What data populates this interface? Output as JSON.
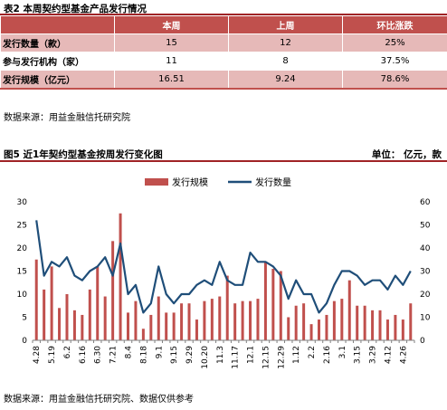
{
  "table": {
    "caption": "表2 本周契约型基金产品发行情况",
    "headers": [
      "",
      "本周",
      "上周",
      "环比涨跌"
    ],
    "rows": [
      {
        "label": "发行数量（款）",
        "this_week": "15",
        "last_week": "12",
        "change": "25%"
      },
      {
        "label": "参与发行机构（家）",
        "this_week": "11",
        "last_week": "8",
        "change": "37.5%"
      },
      {
        "label": "发行规模（亿元）",
        "this_week": "16.51",
        "last_week": "9.24",
        "change": "78.6%"
      }
    ],
    "source": "数据来源：用益金融信托研究院"
  },
  "figure": {
    "caption": "图5 近1年契约型基金按周发行变化图",
    "unit": "单位： 亿元，款",
    "source": "数据来源：用益金融信托研究院、数据仅供参考",
    "colors": {
      "bar": "#c0504d",
      "line": "#1f4e79",
      "accent": "#a02326"
    }
  },
  "chart_data": {
    "type": "bar",
    "series": [
      {
        "name": "发行规模",
        "type": "bar",
        "axis": "left",
        "values": [
          17.5,
          11,
          16,
          7,
          10,
          6.5,
          5.5,
          11,
          16,
          9.5,
          21.5,
          27.5,
          6,
          8.5,
          2.5,
          5.5,
          9.5,
          6,
          6,
          8,
          8,
          4.5,
          8.5,
          9,
          9.5,
          14,
          8,
          8.5,
          8.5,
          9,
          17,
          15.5,
          15,
          5,
          7.5,
          8,
          3.5,
          4.5,
          5.5,
          8.5,
          9,
          13,
          7.5,
          7.5,
          6.5,
          6.5,
          4.5,
          5.5,
          4.5,
          8
        ]
      },
      {
        "name": "发行数量",
        "type": "line",
        "axis": "right",
        "values": [
          52,
          28,
          34,
          32,
          36,
          28,
          26,
          30,
          32,
          36,
          28,
          42,
          20,
          24,
          12,
          16,
          32,
          20,
          16,
          20,
          20,
          24,
          26,
          24,
          34,
          26,
          24,
          24,
          38,
          34,
          34,
          32,
          28,
          18,
          26,
          20,
          20,
          12,
          16,
          24,
          30,
          30,
          28,
          24,
          26,
          26,
          22,
          28,
          24,
          30
        ]
      }
    ],
    "x_tick_labels": [
      "4.28",
      "5.19",
      "6.2",
      "6.16",
      "6.30",
      "7.21",
      "8.4",
      "8.18",
      "9.1",
      "9.15",
      "9.29",
      "10.20",
      "11.3",
      "11.17",
      "12.1",
      "12.15",
      "12.29",
      "1.12",
      "2.2",
      "2.16",
      "3.1",
      "3.15",
      "3.29",
      "4.12",
      "4.26"
    ],
    "y_left": {
      "min": 0,
      "max": 30,
      "ticks": [
        0,
        5,
        10,
        15,
        20,
        25,
        30
      ]
    },
    "y_right": {
      "min": 0,
      "max": 60,
      "ticks": [
        0,
        10,
        20,
        30,
        40,
        50,
        60
      ]
    },
    "grid": false,
    "legend_position": "top-center"
  }
}
